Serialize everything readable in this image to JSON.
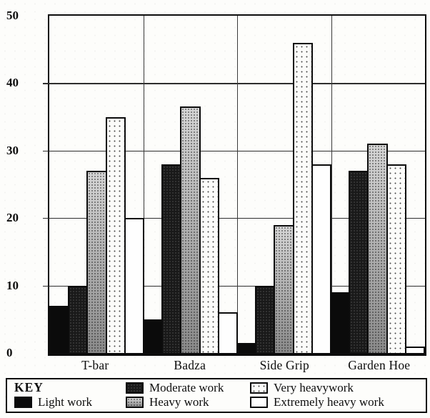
{
  "legend": {
    "title": "KEY",
    "items": [
      {
        "label": "Light work",
        "pattern": "light"
      },
      {
        "label": "Moderate work",
        "pattern": "moderate"
      },
      {
        "label": "Heavy work",
        "pattern": "heavy"
      },
      {
        "label": "Very heavywork",
        "pattern": "veryheavy"
      },
      {
        "label": "Extremely heavy work",
        "pattern": "extreme"
      }
    ]
  },
  "chart_data": {
    "type": "bar",
    "title": "",
    "xlabel": "",
    "ylabel": "",
    "categories": [
      "T-bar",
      "Badza",
      "Side Grip",
      "Garden Hoe"
    ],
    "series": [
      {
        "name": "Light work",
        "values": [
          7,
          5,
          1.5,
          9
        ]
      },
      {
        "name": "Moderate work",
        "values": [
          10,
          28,
          10,
          27
        ]
      },
      {
        "name": "Heavy work",
        "values": [
          27,
          36.5,
          19,
          31
        ]
      },
      {
        "name": "Very heavywork",
        "values": [
          35,
          26,
          46,
          28
        ]
      },
      {
        "name": "Extremely heavy work",
        "values": [
          20,
          6,
          28,
          1
        ]
      }
    ],
    "ylim": [
      0,
      50
    ],
    "y_ticks": [
      0,
      10,
      20,
      30,
      40,
      50
    ],
    "grid": true,
    "legend_position": "bottom",
    "colors": {
      "ink": "#0d0d0d",
      "paper": "#fdfdfb",
      "heavy_gray": "#c6c6c6"
    }
  }
}
